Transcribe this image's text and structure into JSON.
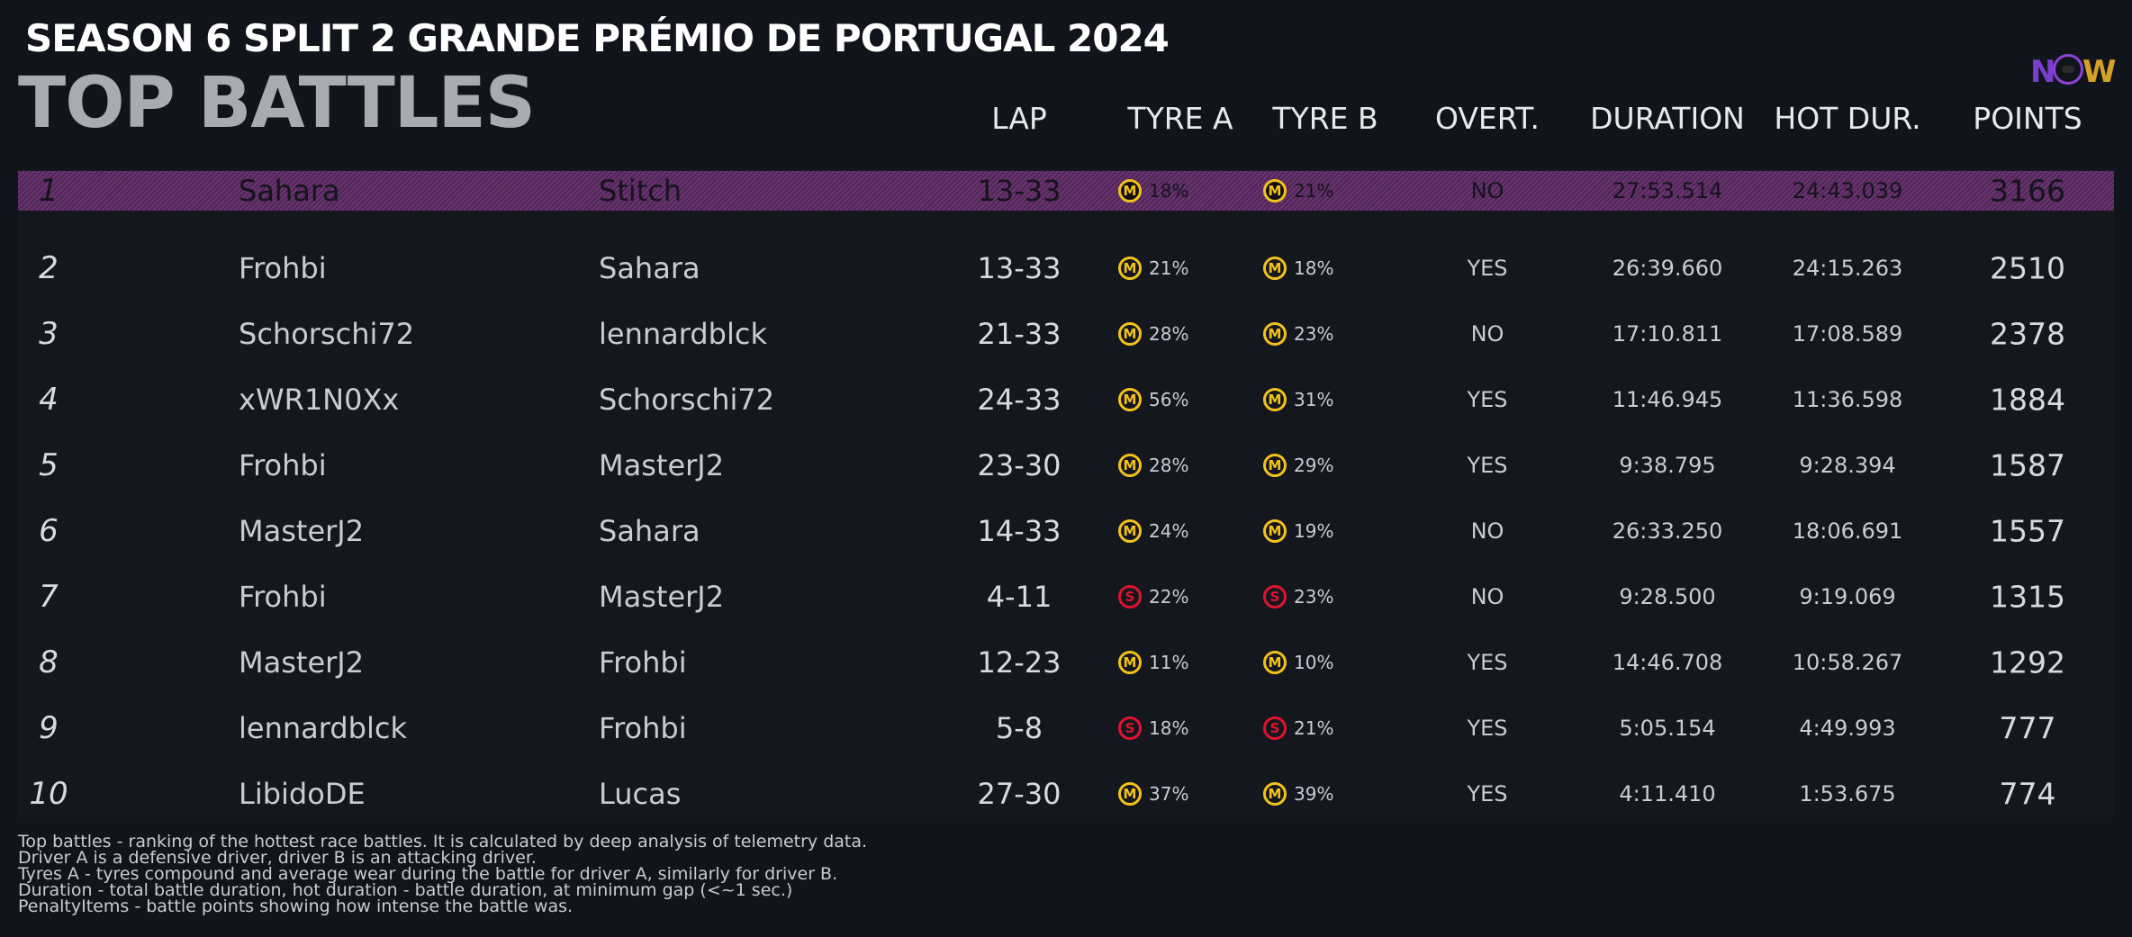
{
  "event_title": "SEASON 6 SPLIT 2 GRANDE PRÉMIO DE PORTUGAL 2024",
  "page_title": "TOP BATTLES",
  "logo": {
    "text": "NOW"
  },
  "columns": {
    "lap": "LAP",
    "tyre_a": "TYRE A",
    "tyre_b": "TYRE B",
    "overtake": "OVERT.",
    "duration": "DURATION",
    "hot_duration": "HOT DUR.",
    "points": "POINTS"
  },
  "rows": [
    {
      "pos": "1",
      "driver_a": "Sahara",
      "driver_b": "Stitch",
      "lap": "13-33",
      "tyre_a": {
        "compound": "M",
        "wear": "18%"
      },
      "tyre_b": {
        "compound": "M",
        "wear": "21%"
      },
      "overtake": "NO",
      "duration": "27:53.514",
      "hot_duration": "24:43.039",
      "points": "3166"
    },
    {
      "pos": "2",
      "driver_a": "Frohbi",
      "driver_b": "Sahara",
      "lap": "13-33",
      "tyre_a": {
        "compound": "M",
        "wear": "21%"
      },
      "tyre_b": {
        "compound": "M",
        "wear": "18%"
      },
      "overtake": "YES",
      "duration": "26:39.660",
      "hot_duration": "24:15.263",
      "points": "2510"
    },
    {
      "pos": "3",
      "driver_a": "Schorschi72",
      "driver_b": "lennardblck",
      "lap": "21-33",
      "tyre_a": {
        "compound": "M",
        "wear": "28%"
      },
      "tyre_b": {
        "compound": "M",
        "wear": "23%"
      },
      "overtake": "NO",
      "duration": "17:10.811",
      "hot_duration": "17:08.589",
      "points": "2378"
    },
    {
      "pos": "4",
      "driver_a": "xWR1N0Xx",
      "driver_b": "Schorschi72",
      "lap": "24-33",
      "tyre_a": {
        "compound": "M",
        "wear": "56%"
      },
      "tyre_b": {
        "compound": "M",
        "wear": "31%"
      },
      "overtake": "YES",
      "duration": "11:46.945",
      "hot_duration": "11:36.598",
      "points": "1884"
    },
    {
      "pos": "5",
      "driver_a": "Frohbi",
      "driver_b": "MasterJ2",
      "lap": "23-30",
      "tyre_a": {
        "compound": "M",
        "wear": "28%"
      },
      "tyre_b": {
        "compound": "M",
        "wear": "29%"
      },
      "overtake": "YES",
      "duration": "9:38.795",
      "hot_duration": "9:28.394",
      "points": "1587"
    },
    {
      "pos": "6",
      "driver_a": "MasterJ2",
      "driver_b": "Sahara",
      "lap": "14-33",
      "tyre_a": {
        "compound": "M",
        "wear": "24%"
      },
      "tyre_b": {
        "compound": "M",
        "wear": "19%"
      },
      "overtake": "NO",
      "duration": "26:33.250",
      "hot_duration": "18:06.691",
      "points": "1557"
    },
    {
      "pos": "7",
      "driver_a": "Frohbi",
      "driver_b": "MasterJ2",
      "lap": "4-11",
      "tyre_a": {
        "compound": "S",
        "wear": "22%"
      },
      "tyre_b": {
        "compound": "S",
        "wear": "23%"
      },
      "overtake": "NO",
      "duration": "9:28.500",
      "hot_duration": "9:19.069",
      "points": "1315"
    },
    {
      "pos": "8",
      "driver_a": "MasterJ2",
      "driver_b": "Frohbi",
      "lap": "12-23",
      "tyre_a": {
        "compound": "M",
        "wear": "11%"
      },
      "tyre_b": {
        "compound": "M",
        "wear": "10%"
      },
      "overtake": "YES",
      "duration": "14:46.708",
      "hot_duration": "10:58.267",
      "points": "1292"
    },
    {
      "pos": "9",
      "driver_a": "lennardblck",
      "driver_b": "Frohbi",
      "lap": "5-8",
      "tyre_a": {
        "compound": "S",
        "wear": "18%"
      },
      "tyre_b": {
        "compound": "S",
        "wear": "21%"
      },
      "overtake": "YES",
      "duration": "5:05.154",
      "hot_duration": "4:49.993",
      "points": "777"
    },
    {
      "pos": "10",
      "driver_a": "LibidoDE",
      "driver_b": "Lucas",
      "lap": "27-30",
      "tyre_a": {
        "compound": "M",
        "wear": "37%"
      },
      "tyre_b": {
        "compound": "M",
        "wear": "39%"
      },
      "overtake": "YES",
      "duration": "4:11.410",
      "hot_duration": "1:53.675",
      "points": "774"
    }
  ],
  "notes": [
    "Top battles - ranking of the hottest race battles. It is calculated by deep analysis of telemetry data.",
    "Driver A is a defensive driver, driver B is an attacking driver.",
    "Tyres A - tyres compound and average wear during the battle for driver A, similarly for driver B.",
    "Duration - total battle duration, hot duration - battle duration, at minimum gap (<~1 sec.)",
    "PenaltyItems - battle points showing how intense the battle was."
  ],
  "colors": {
    "highlight": "#6a3470",
    "medium_tyre": "#f3c21a",
    "soft_tyre": "#e2132e"
  }
}
